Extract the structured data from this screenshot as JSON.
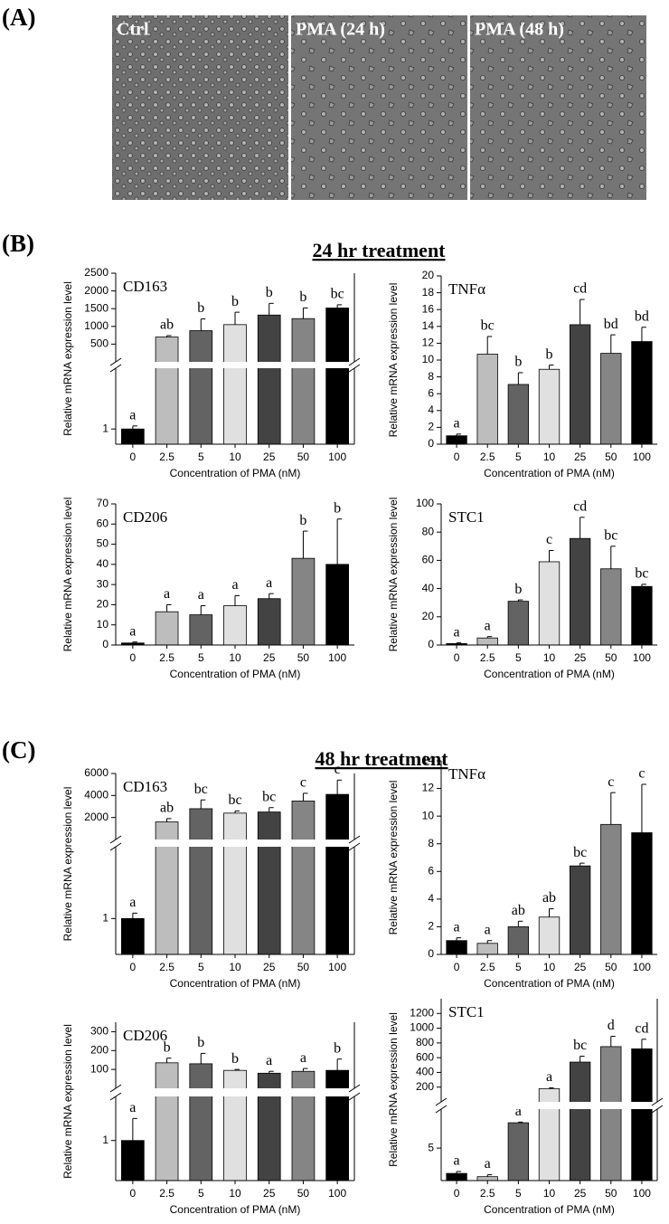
{
  "panels": [
    "(A)",
    "(B)",
    "(C)"
  ],
  "images": [
    "Ctrl",
    "PMA (24 h)",
    "PMA (48 h)"
  ],
  "sections": [
    "24 hr treatment",
    "48 hr treatment"
  ],
  "chart_data": [
    {
      "type": "bar",
      "title": "CD163",
      "ylabel": "Relative mRNA expression level",
      "xlabel": "Concentration of PMA (nM)",
      "categories": [
        "0",
        "2.5",
        "5",
        "10",
        "25",
        "50",
        "100"
      ],
      "values": [
        1,
        700,
        880,
        1050,
        1320,
        1220,
        1520
      ],
      "errors": [
        0.2,
        40,
        330,
        350,
        330,
        300,
        90
      ],
      "letters": [
        "a",
        "ab",
        "b",
        "b",
        "b",
        "b",
        "bc"
      ],
      "colors": [
        "#000000",
        "#bdbdbd",
        "#636363",
        "#e0e0e0",
        "#434343",
        "#858585",
        "#000000"
      ],
      "ylim": [
        0,
        2500
      ],
      "yticks": [
        500,
        1000,
        1500,
        2000,
        2500
      ],
      "ylim_lower": [
        0,
        5
      ],
      "yticks_lower": [
        1
      ]
    },
    {
      "type": "bar",
      "title": "TNFα",
      "ylabel": "Relative mRNA expression level",
      "xlabel": "Concentration of PMA (nM)",
      "categories": [
        "0",
        "2.5",
        "5",
        "10",
        "25",
        "50",
        "100"
      ],
      "values": [
        1,
        10.7,
        7.1,
        8.9,
        14.2,
        10.8,
        12.2
      ],
      "errors": [
        0.2,
        2.1,
        1.4,
        0.5,
        3.0,
        2.2,
        1.7
      ],
      "letters": [
        "a",
        "bc",
        "b",
        "b",
        "cd",
        "bd",
        "bd"
      ],
      "colors": [
        "#000000",
        "#bdbdbd",
        "#636363",
        "#e0e0e0",
        "#434343",
        "#858585",
        "#000000"
      ],
      "ylim": [
        0,
        20
      ],
      "yticks": [
        0,
        2,
        4,
        6,
        8,
        10,
        12,
        14,
        16,
        18,
        20
      ]
    },
    {
      "type": "bar",
      "title": "CD206",
      "ylabel": "Relative mRNA expression level",
      "xlabel": "Concentration of PMA (nM)",
      "categories": [
        "0",
        "2.5",
        "5",
        "10",
        "25",
        "50",
        "100"
      ],
      "values": [
        1,
        16.5,
        15,
        19.5,
        23,
        43,
        40
      ],
      "errors": [
        0.5,
        3.5,
        4.5,
        5,
        2.5,
        13.5,
        22.5
      ],
      "letters": [
        "a",
        "a",
        "a",
        "a",
        "a",
        "b",
        "b"
      ],
      "colors": [
        "#000000",
        "#bdbdbd",
        "#636363",
        "#e0e0e0",
        "#434343",
        "#858585",
        "#000000"
      ],
      "ylim": [
        0,
        70
      ],
      "yticks": [
        0,
        10,
        20,
        30,
        40,
        50,
        60,
        70
      ]
    },
    {
      "type": "bar",
      "title": "STC1",
      "ylabel": "Relative mRNA expression level",
      "xlabel": "Concentration of PMA (nM)",
      "categories": [
        "0",
        "2.5",
        "5",
        "10",
        "25",
        "50",
        "100"
      ],
      "values": [
        1,
        5,
        31,
        59,
        75.5,
        54,
        41.5
      ],
      "errors": [
        0.5,
        1,
        1,
        8,
        15,
        16,
        1.5
      ],
      "letters": [
        "a",
        "a",
        "b",
        "c",
        "cd",
        "bc",
        "bc"
      ],
      "colors": [
        "#000000",
        "#bdbdbd",
        "#636363",
        "#e0e0e0",
        "#434343",
        "#858585",
        "#000000"
      ],
      "ylim": [
        0,
        100
      ],
      "yticks": [
        0,
        20,
        40,
        60,
        80,
        100
      ]
    },
    {
      "type": "bar",
      "title": "CD163",
      "ylabel": "Relative mRNA expression level",
      "xlabel": "Concentration of PMA (nM)",
      "categories": [
        "0",
        "2.5",
        "5",
        "10",
        "25",
        "50",
        "100"
      ],
      "values": [
        1,
        1600,
        2800,
        2400,
        2500,
        3500,
        4100
      ],
      "errors": [
        0.15,
        300,
        800,
        200,
        400,
        700,
        1300
      ],
      "letters": [
        "a",
        "ab",
        "bc",
        "bc",
        "bc",
        "c",
        "c"
      ],
      "colors": [
        "#000000",
        "#bdbdbd",
        "#636363",
        "#e0e0e0",
        "#434343",
        "#858585",
        "#000000"
      ],
      "ylim": [
        0,
        6000
      ],
      "yticks": [
        2000,
        4000,
        6000
      ],
      "ylim_lower": [
        0,
        3
      ],
      "yticks_lower": [
        1
      ]
    },
    {
      "type": "bar",
      "title": "TNFα",
      "ylabel": "Relative mRNA expression level",
      "xlabel": "Concentration of PMA (nM)",
      "categories": [
        "0",
        "2.5",
        "5",
        "10",
        "25",
        "50",
        "100"
      ],
      "values": [
        1,
        0.8,
        2.0,
        2.7,
        6.4,
        9.4,
        8.8
      ],
      "errors": [
        0.2,
        0.2,
        0.4,
        0.6,
        0.2,
        2.3,
        3.5
      ],
      "letters": [
        "a",
        "a",
        "ab",
        "ab",
        "bc",
        "c",
        "c"
      ],
      "colors": [
        "#000000",
        "#bdbdbd",
        "#636363",
        "#e0e0e0",
        "#434343",
        "#858585",
        "#000000"
      ],
      "ylim": [
        0,
        14
      ],
      "yticks": [
        0,
        2,
        4,
        6,
        8,
        10,
        12,
        14
      ]
    },
    {
      "type": "bar",
      "title": "CD206",
      "ylabel": "Relative mRNA expression level",
      "xlabel": "Concentration of PMA (nM)",
      "categories": [
        "0",
        "2.5",
        "5",
        "10",
        "25",
        "50",
        "100"
      ],
      "values": [
        1,
        135,
        130,
        95,
        80,
        90,
        95
      ],
      "errors": [
        0.55,
        25,
        55,
        5,
        10,
        15,
        60
      ],
      "letters": [
        "a",
        "b",
        "b",
        "b",
        "a",
        "a",
        "b"
      ],
      "colors": [
        "#000000",
        "#bdbdbd",
        "#636363",
        "#e0e0e0",
        "#434343",
        "#858585",
        "#000000"
      ],
      "ylim": [
        0,
        350
      ],
      "yticks": [
        100,
        200,
        300
      ],
      "ylim_lower": [
        0,
        2.1
      ],
      "yticks_lower": [
        1
      ]
    },
    {
      "type": "bar",
      "title": "STC1",
      "ylabel": "Relative mRNA expression level",
      "xlabel": "Concentration of PMA (nM)",
      "categories": [
        "0",
        "2.5",
        "5",
        "10",
        "25",
        "50",
        "100"
      ],
      "values": [
        1.1,
        0.6,
        8.9,
        180,
        540,
        750,
        720
      ],
      "errors": [
        0.3,
        0.3,
        0.1,
        10,
        80,
        140,
        130
      ],
      "letters": [
        "a",
        "a",
        "a",
        "a",
        "bc",
        "d",
        "cd"
      ],
      "colors": [
        "#000000",
        "#bdbdbd",
        "#636363",
        "#e0e0e0",
        "#434343",
        "#858585",
        "#000000"
      ],
      "ylim": [
        0,
        1400
      ],
      "yticks": [
        200,
        400,
        600,
        800,
        1000,
        1200
      ],
      "ylim_lower": [
        0,
        11
      ],
      "yticks_lower": [
        5
      ]
    }
  ]
}
